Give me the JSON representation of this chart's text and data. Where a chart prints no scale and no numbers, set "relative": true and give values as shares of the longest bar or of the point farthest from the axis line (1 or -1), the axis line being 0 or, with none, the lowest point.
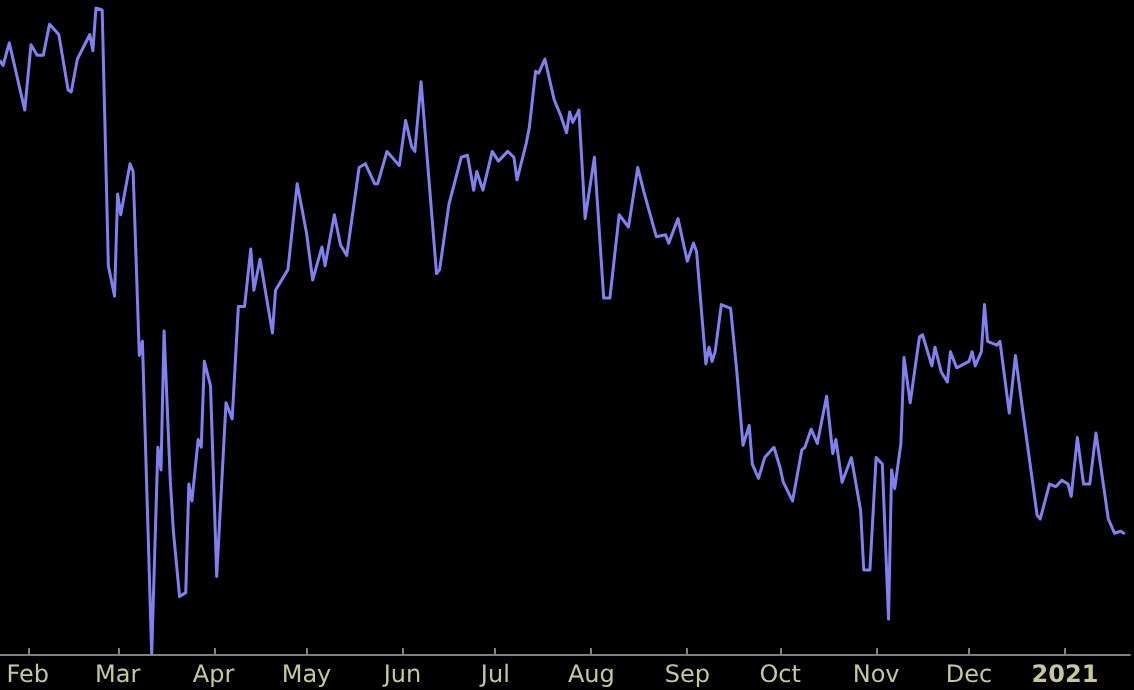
{
  "chart_data": {
    "type": "line",
    "relative": true,
    "marker": "none",
    "line_style": "solid",
    "grid": false,
    "tick_labels": "x",
    "xlim": [
      "2020-01-23",
      "2021-01-22"
    ],
    "xticks": [
      {
        "value": "2020-02-01",
        "label": "Feb"
      },
      {
        "value": "2020-03-01",
        "label": "Mar"
      },
      {
        "value": "2020-04-01",
        "label": "Apr"
      },
      {
        "value": "2020-05-01",
        "label": "May"
      },
      {
        "value": "2020-06-01",
        "label": "Jun"
      },
      {
        "value": "2020-07-01",
        "label": "Jul"
      },
      {
        "value": "2020-08-01",
        "label": "Aug"
      },
      {
        "value": "2020-09-01",
        "label": "Sep"
      },
      {
        "value": "2020-10-01",
        "label": "Oct"
      },
      {
        "value": "2020-11-01",
        "label": "Nov"
      },
      {
        "value": "2020-12-01",
        "label": "Dec"
      },
      {
        "value": "2021-01-01",
        "label": "2021"
      }
    ],
    "series": [
      {
        "color": "#8080f0",
        "x": [
          "2020-01-23",
          "2020-01-24",
          "2020-01-26",
          "2020-01-31",
          "2020-02-02",
          "2020-02-04",
          "2020-02-06",
          "2020-02-08",
          "2020-02-11",
          "2020-02-14",
          "2020-02-15",
          "2020-02-17",
          "2020-02-21",
          "2020-02-22",
          "2020-02-23",
          "2020-02-25",
          "2020-02-27",
          "2020-02-29",
          "2020-03-01",
          "2020-03-02",
          "2020-03-05",
          "2020-03-06",
          "2020-03-08",
          "2020-03-09",
          "2020-03-12",
          "2020-03-14",
          "2020-03-15",
          "2020-03-16",
          "2020-03-18",
          "2020-03-19",
          "2020-03-21",
          "2020-03-23",
          "2020-03-24",
          "2020-03-25",
          "2020-03-27",
          "2020-03-28",
          "2020-03-29",
          "2020-03-31",
          "2020-04-02",
          "2020-04-05",
          "2020-04-07",
          "2020-04-09",
          "2020-04-11",
          "2020-04-13",
          "2020-04-14",
          "2020-04-16",
          "2020-04-20",
          "2020-04-21",
          "2020-04-25",
          "2020-04-28",
          "2020-05-01",
          "2020-05-03",
          "2020-05-06",
          "2020-05-07",
          "2020-05-10",
          "2020-05-12",
          "2020-05-14",
          "2020-05-18",
          "2020-05-20",
          "2020-05-23",
          "2020-05-24",
          "2020-05-27",
          "2020-05-31",
          "2020-06-02",
          "2020-06-04",
          "2020-06-05",
          "2020-06-07",
          "2020-06-12",
          "2020-06-13",
          "2020-06-16",
          "2020-06-20",
          "2020-06-22",
          "2020-06-24",
          "2020-06-25",
          "2020-06-27",
          "2020-06-30",
          "2020-07-02",
          "2020-07-05",
          "2020-07-07",
          "2020-07-08",
          "2020-07-11",
          "2020-07-12",
          "2020-07-14",
          "2020-07-15",
          "2020-07-17",
          "2020-07-20",
          "2020-07-22",
          "2020-07-24",
          "2020-07-25",
          "2020-07-26",
          "2020-07-28",
          "2020-07-30",
          "2020-08-02",
          "2020-08-05",
          "2020-08-07",
          "2020-08-10",
          "2020-08-13",
          "2020-08-16",
          "2020-08-18",
          "2020-08-22",
          "2020-08-25",
          "2020-08-26",
          "2020-08-29",
          "2020-09-01",
          "2020-09-03",
          "2020-09-04",
          "2020-09-07",
          "2020-09-08",
          "2020-09-09",
          "2020-09-10",
          "2020-09-12",
          "2020-09-15",
          "2020-09-17",
          "2020-09-19",
          "2020-09-21",
          "2020-09-22",
          "2020-09-24",
          "2020-09-26",
          "2020-09-29",
          "2020-10-01",
          "2020-10-02",
          "2020-10-05",
          "2020-10-08",
          "2020-10-09",
          "2020-10-11",
          "2020-10-13",
          "2020-10-16",
          "2020-10-18",
          "2020-10-19",
          "2020-10-21",
          "2020-10-24",
          "2020-10-27",
          "2020-10-28",
          "2020-10-30",
          "2020-11-01",
          "2020-11-03",
          "2020-11-05",
          "2020-11-06",
          "2020-11-07",
          "2020-11-09",
          "2020-11-10",
          "2020-11-12",
          "2020-11-15",
          "2020-11-16",
          "2020-11-19",
          "2020-11-20",
          "2020-11-22",
          "2020-11-24",
          "2020-11-25",
          "2020-11-27",
          "2020-12-01",
          "2020-12-02",
          "2020-12-03",
          "2020-12-05",
          "2020-12-06",
          "2020-12-07",
          "2020-12-10",
          "2020-12-11",
          "2020-12-14",
          "2020-12-16",
          "2020-12-18",
          "2020-12-23",
          "2020-12-24",
          "2020-12-27",
          "2020-12-29",
          "2020-12-31",
          "2021-01-02",
          "2021-01-03",
          "2021-01-05",
          "2021-01-07",
          "2021-01-09",
          "2021-01-11",
          "2021-01-15",
          "2021-01-17",
          "2021-01-19",
          "2021-01-20"
        ],
        "values": [
          0.918,
          0.911,
          0.946,
          0.842,
          0.943,
          0.927,
          0.927,
          0.975,
          0.959,
          0.873,
          0.87,
          0.921,
          0.959,
          0.934,
          1,
          0.997,
          0.601,
          0.554,
          0.712,
          0.68,
          0.759,
          0.747,
          0.462,
          0.484,
          0,
          0.32,
          0.285,
          0.5,
          0.269,
          0.19,
          0.089,
          0.095,
          0.263,
          0.237,
          0.332,
          0.32,
          0.453,
          0.415,
          0.12,
          0.389,
          0.364,
          0.538,
          0.538,
          0.627,
          0.563,
          0.611,
          0.497,
          0.563,
          0.595,
          0.728,
          0.652,
          0.579,
          0.63,
          0.601,
          0.68,
          0.633,
          0.617,
          0.753,
          0.759,
          0.728,
          0.728,
          0.778,
          0.756,
          0.826,
          0.785,
          0.778,
          0.886,
          0.589,
          0.595,
          0.696,
          0.769,
          0.772,
          0.718,
          0.747,
          0.718,
          0.778,
          0.763,
          0.778,
          0.769,
          0.734,
          0.791,
          0.816,
          0.902,
          0.899,
          0.921,
          0.858,
          0.835,
          0.807,
          0.839,
          0.823,
          0.842,
          0.674,
          0.769,
          0.551,
          0.551,
          0.68,
          0.661,
          0.753,
          0.715,
          0.646,
          0.649,
          0.636,
          0.674,
          0.608,
          0.636,
          0.623,
          0.449,
          0.475,
          0.453,
          0.468,
          0.541,
          0.535,
          0.437,
          0.323,
          0.354,
          0.294,
          0.272,
          0.304,
          0.32,
          0.288,
          0.266,
          0.237,
          0.316,
          0.32,
          0.348,
          0.326,
          0.399,
          0.31,
          0.332,
          0.266,
          0.304,
          0.222,
          0.13,
          0.13,
          0.304,
          0.294,
          0.054,
          0.285,
          0.256,
          0.326,
          0.459,
          0.389,
          0.491,
          0.494,
          0.446,
          0.475,
          0.437,
          0.421,
          0.468,
          0.443,
          0.453,
          0.468,
          0.446,
          0.468,
          0.541,
          0.484,
          0.478,
          0.484,
          0.373,
          0.462,
          0.389,
          0.215,
          0.209,
          0.263,
          0.259,
          0.269,
          0.263,
          0.244,
          0.335,
          0.263,
          0.263,
          0.342,
          0.209,
          0.187,
          0.19,
          0.187
        ]
      }
    ]
  }
}
